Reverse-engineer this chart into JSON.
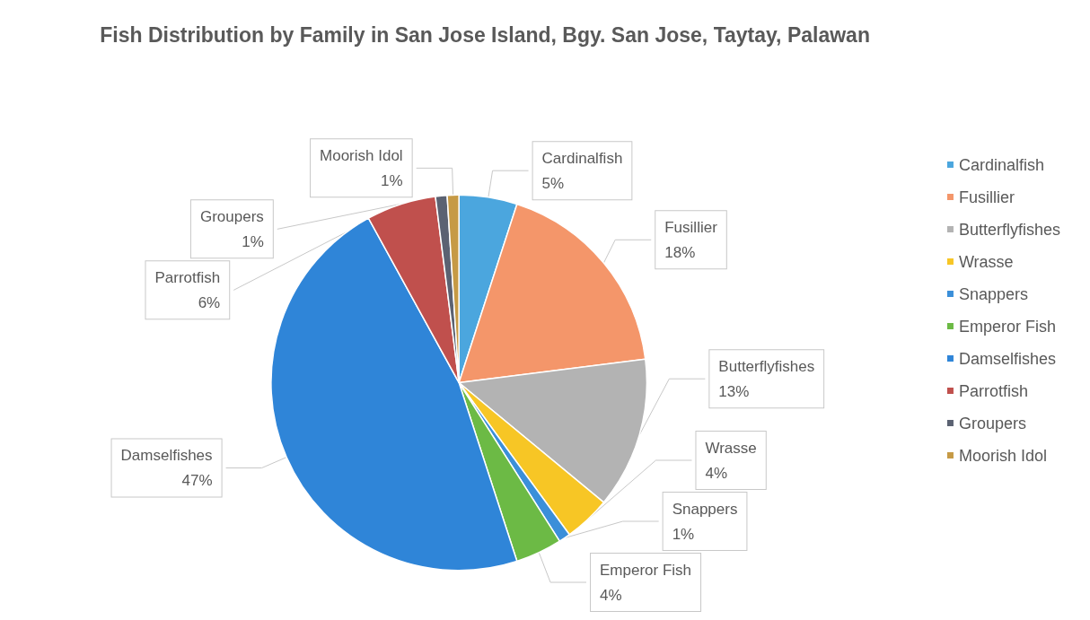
{
  "chart_data": {
    "type": "pie",
    "title": "Fish Distribution by Family in San Jose Island, Bgy. San Jose, Taytay, Palawan",
    "categories": [
      "Cardinalfish",
      "Fusillier",
      "Butterflyfishes",
      "Wrasse",
      "Snappers",
      "Emperor Fish",
      "Damselfishes",
      "Parrotfish",
      "Groupers",
      "Moorish Idol"
    ],
    "values": [
      5,
      18,
      13,
      4,
      1,
      4,
      47,
      6,
      1,
      1
    ],
    "value_labels": [
      "5%",
      "18%",
      "13%",
      "4%",
      "1%",
      "4%",
      "47%",
      "6%",
      "1%",
      "1%"
    ],
    "colors": [
      "#4ba6de",
      "#f4966a",
      "#b3b3b3",
      "#f7c625",
      "#3b8fd9",
      "#6cba45",
      "#2f85d8",
      "#c0504d",
      "#5b6272",
      "#c69a45"
    ],
    "legend": "right"
  }
}
